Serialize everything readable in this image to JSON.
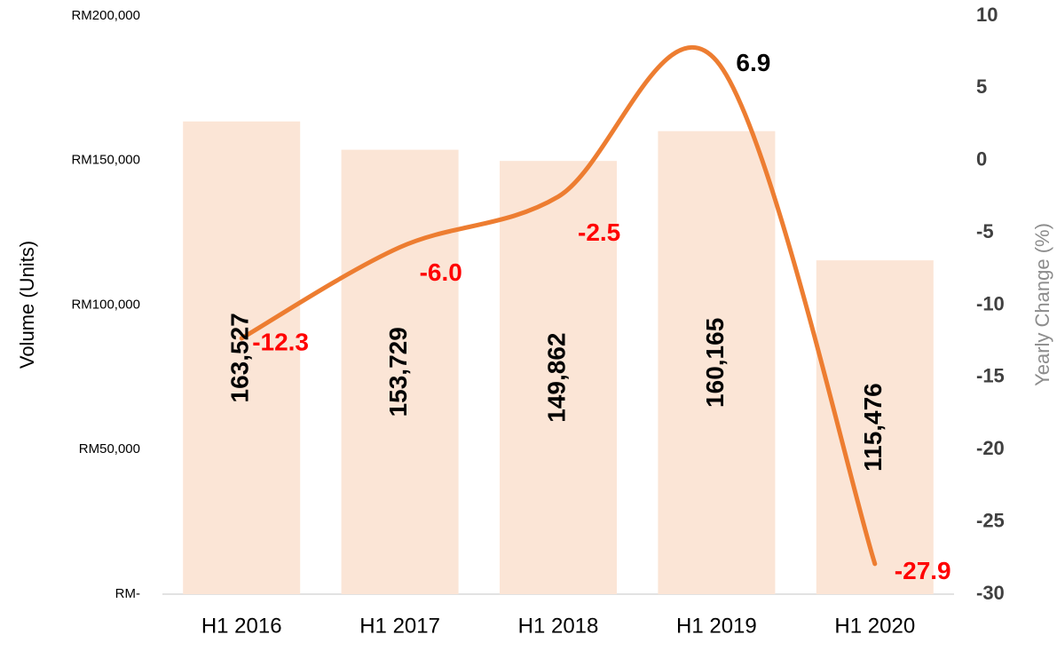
{
  "chart_data": {
    "type": "combo",
    "categories": [
      "H1 2016",
      "H1 2017",
      "H1 2018",
      "H1 2019",
      "H1 2020"
    ],
    "y_label": "Volume (Units)",
    "y2_label": "Yearly Change (%)",
    "ylim": [
      0,
      200000
    ],
    "yticks": [
      {
        "value": 0,
        "label": "RM-"
      },
      {
        "value": 50000,
        "label": "RM50,000"
      },
      {
        "value": 100000,
        "label": "RM100,000"
      },
      {
        "value": 150000,
        "label": "RM150,000"
      },
      {
        "value": 200000,
        "label": "RM200,000"
      }
    ],
    "y2lim": [
      -30,
      10
    ],
    "y2ticks": [
      -30,
      -25,
      -20,
      -15,
      -10,
      -5,
      0,
      5,
      10
    ],
    "series": [
      {
        "type": "bar",
        "color": "#fbe5d6",
        "values": [
          163527,
          153729,
          149862,
          160165,
          115476
        ],
        "value_labels": [
          "163,527",
          "153,729",
          "149,862",
          "160,165",
          "115,476"
        ]
      },
      {
        "type": "line",
        "axis": "y2",
        "color": "#ed7d31",
        "smooth": true,
        "values": [
          -12.3,
          -6.0,
          -2.5,
          6.9,
          -27.9
        ],
        "value_labels": [
          "-12.3",
          "-6.0",
          "-2.5",
          "6.9",
          "-27.9"
        ]
      }
    ]
  }
}
